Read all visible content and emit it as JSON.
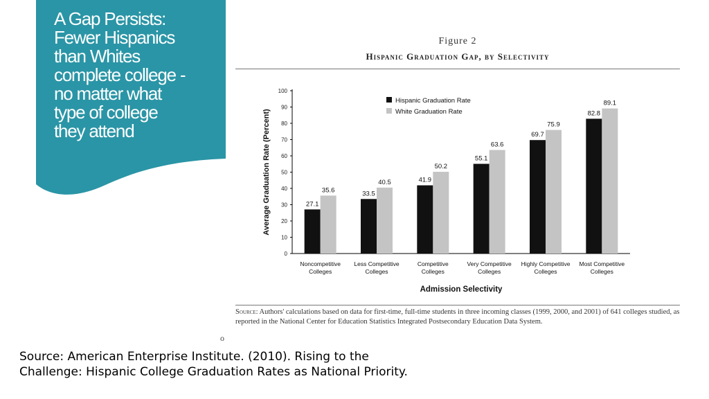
{
  "slide": {
    "title": "A Gap Persists:\nFewer Hispanics\nthan Whites\ncomplete college -\nno matter what\ntype of college\nthey attend",
    "accent_color": "#2a95a6",
    "bullet": "o",
    "citation_lines": [
      "Source: American Enterprise Institute. (2010). Rising to the",
      "Challenge: Hispanic College Graduation Rates as National Priority."
    ]
  },
  "figure": {
    "label": "Figure 2",
    "title": "Hispanic Graduation Gap, by Selectivity",
    "source_label": "Source:",
    "source_text": "Authors' calculations based on data for first-time, full-time students in three incoming classes (1999, 2000, and 2001) of 641 colleges studied, as reported in the National Center for Education Statistics Integrated Postsecondary Education Data System."
  },
  "chart_data": {
    "type": "bar",
    "title": "Hispanic Graduation Gap, by Selectivity",
    "xlabel": "Admission Selectivity",
    "ylabel": "Average Graduation Rate (Percent)",
    "ylim": [
      0,
      100
    ],
    "yticks": [
      0,
      10,
      20,
      30,
      40,
      50,
      60,
      70,
      80,
      90,
      100
    ],
    "grid": false,
    "legend_position": "top-left",
    "categories": [
      [
        "Noncompetitive",
        "Colleges"
      ],
      [
        "Less Competitive",
        "Colleges"
      ],
      [
        "Competitive",
        "Colleges"
      ],
      [
        "Very Competitive",
        "Colleges"
      ],
      [
        "Highly Competitive",
        "Colleges"
      ],
      [
        "Most Competitive",
        "Colleges"
      ]
    ],
    "series": [
      {
        "name": "Hispanic Graduation Rate",
        "color": "#111111",
        "values": [
          27.1,
          33.5,
          41.9,
          55.1,
          69.7,
          82.8
        ]
      },
      {
        "name": "White Graduation Rate",
        "color": "#c4c4c4",
        "values": [
          35.6,
          40.5,
          50.2,
          63.6,
          75.9,
          89.1
        ]
      }
    ]
  }
}
